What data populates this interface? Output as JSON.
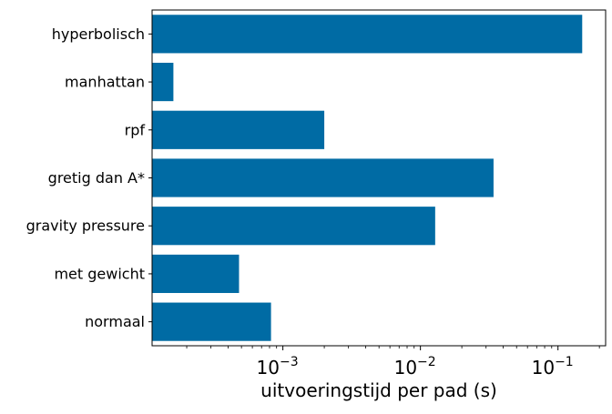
{
  "chart_data": {
    "type": "bar",
    "orientation": "horizontal",
    "xscale": "log",
    "xlim": [
      0.000112,
      0.222
    ],
    "categories": [
      "hyperbolisch",
      "manhattan",
      "rpf",
      "gretig dan A*",
      "gravity pressure",
      "met gewicht",
      "normaal"
    ],
    "values": [
      0.15,
      0.00016,
      0.002,
      0.034,
      0.0128,
      0.00048,
      0.00082
    ],
    "xlabel": "uitvoeringstijd per pad (s)",
    "ylabel": "",
    "title": "",
    "xticks": [
      {
        "value": 0.001,
        "base": "10",
        "exponent": "−3"
      },
      {
        "value": 0.01,
        "base": "10",
        "exponent": "−2"
      },
      {
        "value": 0.1,
        "base": "10",
        "exponent": "−1"
      }
    ],
    "grid": false,
    "legend": "none",
    "bar_color": "#006BA4"
  }
}
